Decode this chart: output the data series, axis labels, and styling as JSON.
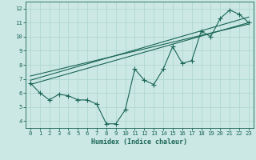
{
  "xlabel": "Humidex (Indice chaleur)",
  "bg_color": "#cce8e4",
  "grid_color": "#b0d8d0",
  "line_color": "#1a6655",
  "xlim": [
    -0.5,
    23.5
  ],
  "ylim": [
    3.5,
    12.5
  ],
  "xticks": [
    0,
    1,
    2,
    3,
    4,
    5,
    6,
    7,
    8,
    9,
    10,
    11,
    12,
    13,
    14,
    15,
    16,
    17,
    18,
    19,
    20,
    21,
    22,
    23
  ],
  "yticks": [
    4,
    5,
    6,
    7,
    8,
    9,
    10,
    11,
    12
  ],
  "line1_x": [
    0,
    1,
    2,
    3,
    4,
    5,
    6,
    7,
    8,
    9,
    10,
    11,
    12,
    13,
    14,
    15,
    16,
    17,
    18,
    19,
    20,
    21,
    22,
    23
  ],
  "line1_y": [
    6.7,
    6.0,
    5.5,
    5.9,
    5.8,
    5.5,
    5.5,
    5.2,
    3.8,
    3.8,
    4.8,
    7.7,
    6.9,
    6.6,
    7.7,
    9.3,
    8.1,
    8.3,
    10.4,
    10.0,
    11.3,
    11.9,
    11.6,
    11.0
  ],
  "line2_x": [
    0,
    23
  ],
  "line2_y": [
    6.6,
    11.0
  ],
  "line3_x": [
    0,
    23
  ],
  "line3_y": [
    6.9,
    11.4
  ],
  "line4_x": [
    0,
    23
  ],
  "line4_y": [
    7.2,
    10.9
  ],
  "tick_fontsize": 5.2,
  "xlabel_fontsize": 6.0,
  "markersize": 2.5
}
